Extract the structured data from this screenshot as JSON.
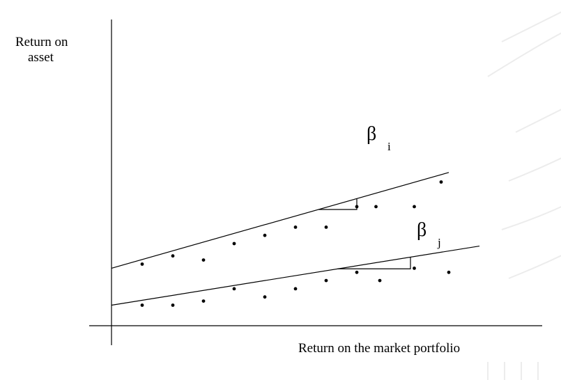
{
  "axes": {
    "y_label_line1": "Return on",
    "y_label_line2": "asset",
    "x_label": "Return on the market portfolio"
  },
  "lines": [
    {
      "beta_symbol": "β",
      "subscript": "i",
      "intercept": 2.8,
      "slope": 0.53,
      "points": [
        [
          0.8,
          3.0
        ],
        [
          1.6,
          3.4
        ],
        [
          2.4,
          3.2
        ],
        [
          3.2,
          4.0
        ],
        [
          4.0,
          4.4
        ],
        [
          4.8,
          4.8
        ],
        [
          5.6,
          4.8
        ],
        [
          6.4,
          5.8
        ],
        [
          6.9,
          5.8
        ],
        [
          7.9,
          5.8
        ],
        [
          8.6,
          7.0
        ]
      ]
    },
    {
      "beta_symbol": "β",
      "subscript": "j",
      "intercept": 1.0,
      "slope": 0.3,
      "points": [
        [
          0.8,
          1.0
        ],
        [
          1.6,
          1.0
        ],
        [
          2.4,
          1.2
        ],
        [
          3.2,
          1.8
        ],
        [
          4.0,
          1.4
        ],
        [
          4.8,
          1.8
        ],
        [
          5.6,
          2.2
        ],
        [
          6.4,
          2.6
        ],
        [
          7.0,
          2.2
        ],
        [
          7.9,
          2.8
        ],
        [
          8.8,
          2.6
        ]
      ]
    }
  ],
  "colors": {
    "ink": "#000000",
    "watermark": "#ececec"
  }
}
